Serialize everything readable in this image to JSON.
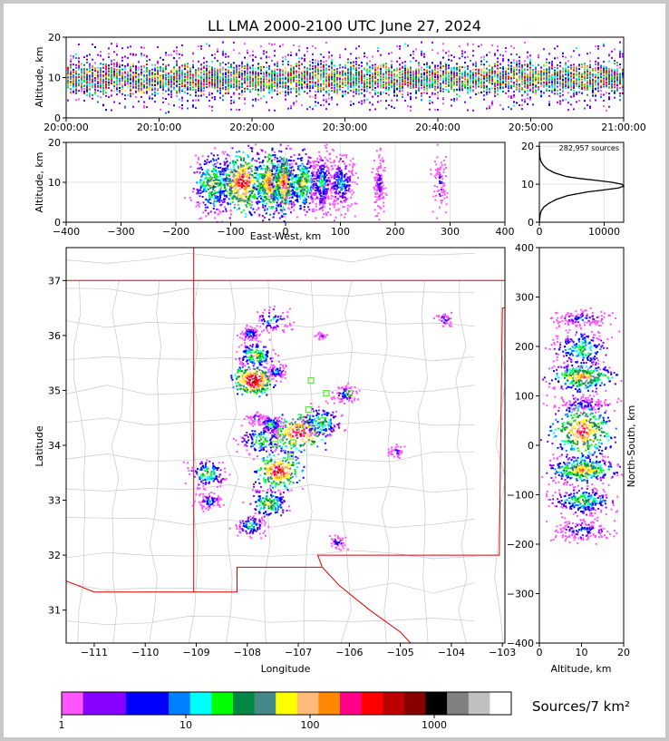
{
  "title": "LL LMA 2000-2100 UTC June 27, 2024",
  "chart_data": [
    {
      "type": "heatmap",
      "panel": "altitude-vs-time",
      "ylabel": "Altitude, km",
      "ylim": [
        0,
        20
      ],
      "yticks": [
        "0",
        "10",
        "20"
      ],
      "xlim": [
        "20:00:00",
        "21:00:00"
      ],
      "xticks": [
        "20:00:00",
        "20:10:00",
        "20:20:00",
        "20:30:00",
        "20:40:00",
        "20:50:00",
        "21:00:00"
      ],
      "altitude_band_km": [
        5,
        15
      ],
      "peak_altitude_km": 10
    },
    {
      "type": "heatmap",
      "panel": "altitude-vs-east-west",
      "xlabel": "East-West, km",
      "ylabel": "Altitude, km",
      "xlim": [
        -400,
        400
      ],
      "ylim": [
        0,
        20
      ],
      "xticks": [
        "−400",
        "−300",
        "−200",
        "−100",
        "0",
        "100",
        "200",
        "300",
        "400"
      ],
      "yticks": [
        "0",
        "10",
        "20"
      ]
    },
    {
      "type": "line",
      "panel": "altitude-histogram",
      "annotation": "282,957 sources",
      "xlim": [
        0,
        13000
      ],
      "ylim": [
        0,
        21
      ],
      "xticks": [
        "0",
        "10000"
      ],
      "yticks": [
        "0",
        "10",
        "20"
      ],
      "curve": {
        "altitude_km": [
          0,
          2,
          3,
          4,
          5,
          6,
          7,
          8,
          8.5,
          9,
          9.5,
          10,
          10.5,
          11,
          11.5,
          12,
          13,
          14,
          15,
          16,
          17,
          18,
          20
        ],
        "sources": [
          0,
          120,
          300,
          700,
          1500,
          2600,
          4300,
          7500,
          10000,
          12200,
          13000,
          12700,
          11200,
          8800,
          6200,
          4200,
          2300,
          1200,
          600,
          250,
          100,
          40,
          0
        ]
      }
    },
    {
      "type": "heatmap",
      "panel": "plan-view-map",
      "xlabel": "Longitude",
      "ylabel": "Latitude",
      "xlim": [
        -111.55,
        -102.95
      ],
      "ylim": [
        30.4,
        37.6
      ],
      "xticks": [
        "−111",
        "−110",
        "−109",
        "−108",
        "−107",
        "−106",
        "−105",
        "−104",
        "−103"
      ],
      "yticks": [
        "31",
        "32",
        "33",
        "34",
        "35",
        "36",
        "37"
      ],
      "lma_stations": [
        [
          -106.75,
          35.18
        ],
        [
          -106.45,
          34.95
        ],
        [
          -106.0,
          34.95
        ],
        [
          -106.8,
          34.65
        ],
        [
          -107.35,
          34.15
        ],
        [
          -107.45,
          34.02
        ],
        [
          -107.1,
          34.05
        ],
        [
          -107.15,
          33.8
        ],
        [
          -106.95,
          34.3
        ]
      ]
    },
    {
      "type": "heatmap",
      "panel": "north-south-vs-altitude",
      "xlabel": "Altitude, km",
      "ylabel": "North-South, km",
      "xlim": [
        0,
        20
      ],
      "ylim": [
        -400,
        400
      ],
      "xticks": [
        "0",
        "10",
        "20"
      ],
      "yticks": [
        "−400",
        "−300",
        "−200",
        "−100",
        "0",
        "100",
        "200",
        "300",
        "400"
      ]
    }
  ],
  "colorbar": {
    "label": "Sources/7 km²",
    "ticks": [
      "1",
      "10",
      "100",
      "1000"
    ],
    "colors": [
      "#ff55ff",
      "#8800ff",
      "#8800ff",
      "#0000ff",
      "#0000ff",
      "#0080ff",
      "#00ffff",
      "#00ff00",
      "#008844",
      "#448888",
      "#ffff00",
      "#ffbb77",
      "#ff8800",
      "#ff0088",
      "#ff0000",
      "#bb0000",
      "#880000",
      "#000000",
      "#808080",
      "#c0c0c0",
      "#ffffff"
    ]
  },
  "icon": "colorbar-legend"
}
